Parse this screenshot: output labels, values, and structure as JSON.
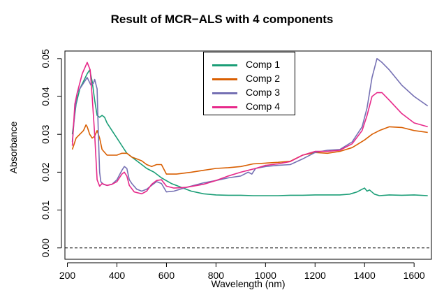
{
  "chart_data": {
    "type": "line",
    "title": "Result of MCR−ALS with 4 components",
    "xlabel": "Wavelength (nm)",
    "ylabel": "Absorbance",
    "xlim": [
      190,
      1670
    ],
    "ylim": [
      -0.003,
      0.052
    ],
    "x_ticks": [
      "200",
      "400",
      "600",
      "800",
      "1000",
      "1200",
      "1400",
      "1600"
    ],
    "y_ticks": [
      "0.00",
      "0.01",
      "0.02",
      "0.03",
      "0.04",
      "0.05"
    ],
    "grid": false,
    "legend_position": "top-center",
    "reference_line": {
      "y": 0,
      "style": "dashed"
    },
    "series": [
      {
        "name": "Comp 1",
        "color": "#1b9e77",
        "points": [
          [
            220,
            0.03
          ],
          [
            235,
            0.038
          ],
          [
            250,
            0.042
          ],
          [
            265,
            0.044
          ],
          [
            280,
            0.046
          ],
          [
            290,
            0.047
          ],
          [
            300,
            0.044
          ],
          [
            310,
            0.039
          ],
          [
            320,
            0.035
          ],
          [
            330,
            0.0345
          ],
          [
            340,
            0.035
          ],
          [
            350,
            0.0345
          ],
          [
            360,
            0.033
          ],
          [
            380,
            0.031
          ],
          [
            400,
            0.029
          ],
          [
            420,
            0.027
          ],
          [
            440,
            0.025
          ],
          [
            460,
            0.024
          ],
          [
            480,
            0.023
          ],
          [
            500,
            0.022
          ],
          [
            520,
            0.021
          ],
          [
            550,
            0.02
          ],
          [
            580,
            0.0185
          ],
          [
            620,
            0.017
          ],
          [
            660,
            0.016
          ],
          [
            700,
            0.015
          ],
          [
            750,
            0.0143
          ],
          [
            800,
            0.014
          ],
          [
            850,
            0.0139
          ],
          [
            900,
            0.0139
          ],
          [
            950,
            0.0138
          ],
          [
            1000,
            0.0138
          ],
          [
            1050,
            0.0138
          ],
          [
            1100,
            0.0139
          ],
          [
            1150,
            0.0139
          ],
          [
            1200,
            0.014
          ],
          [
            1250,
            0.014
          ],
          [
            1300,
            0.014
          ],
          [
            1340,
            0.0142
          ],
          [
            1370,
            0.0148
          ],
          [
            1390,
            0.0155
          ],
          [
            1400,
            0.0158
          ],
          [
            1410,
            0.015
          ],
          [
            1420,
            0.0153
          ],
          [
            1440,
            0.0142
          ],
          [
            1460,
            0.0138
          ],
          [
            1500,
            0.014
          ],
          [
            1550,
            0.0139
          ],
          [
            1600,
            0.014
          ],
          [
            1655,
            0.0138
          ]
        ]
      },
      {
        "name": "Comp 2",
        "color": "#d95f02",
        "points": [
          [
            220,
            0.026
          ],
          [
            235,
            0.029
          ],
          [
            250,
            0.03
          ],
          [
            265,
            0.031
          ],
          [
            275,
            0.0325
          ],
          [
            280,
            0.032
          ],
          [
            290,
            0.03
          ],
          [
            300,
            0.029
          ],
          [
            310,
            0.0295
          ],
          [
            320,
            0.031
          ],
          [
            330,
            0.029
          ],
          [
            340,
            0.026
          ],
          [
            360,
            0.0245
          ],
          [
            380,
            0.0245
          ],
          [
            400,
            0.0245
          ],
          [
            420,
            0.025
          ],
          [
            440,
            0.025
          ],
          [
            460,
            0.024
          ],
          [
            480,
            0.0235
          ],
          [
            500,
            0.023
          ],
          [
            520,
            0.022
          ],
          [
            540,
            0.0215
          ],
          [
            560,
            0.022
          ],
          [
            580,
            0.022
          ],
          [
            600,
            0.0195
          ],
          [
            640,
            0.0195
          ],
          [
            700,
            0.02
          ],
          [
            750,
            0.0205
          ],
          [
            800,
            0.021
          ],
          [
            850,
            0.0212
          ],
          [
            900,
            0.0215
          ],
          [
            950,
            0.0222
          ],
          [
            1000,
            0.0224
          ],
          [
            1050,
            0.0226
          ],
          [
            1100,
            0.0229
          ],
          [
            1150,
            0.0245
          ],
          [
            1200,
            0.0252
          ],
          [
            1250,
            0.025
          ],
          [
            1300,
            0.0255
          ],
          [
            1350,
            0.0265
          ],
          [
            1400,
            0.0285
          ],
          [
            1430,
            0.03
          ],
          [
            1460,
            0.031
          ],
          [
            1500,
            0.032
          ],
          [
            1550,
            0.0318
          ],
          [
            1600,
            0.031
          ],
          [
            1655,
            0.0305
          ]
        ]
      },
      {
        "name": "Comp 3",
        "color": "#7570b3",
        "points": [
          [
            220,
            0.028
          ],
          [
            230,
            0.036
          ],
          [
            240,
            0.041
          ],
          [
            260,
            0.043
          ],
          [
            280,
            0.045
          ],
          [
            295,
            0.043
          ],
          [
            305,
            0.0435
          ],
          [
            310,
            0.0445
          ],
          [
            320,
            0.042
          ],
          [
            325,
            0.03
          ],
          [
            330,
            0.02
          ],
          [
            335,
            0.0175
          ],
          [
            345,
            0.0168
          ],
          [
            360,
            0.0165
          ],
          [
            380,
            0.0168
          ],
          [
            400,
            0.018
          ],
          [
            420,
            0.0205
          ],
          [
            430,
            0.0215
          ],
          [
            440,
            0.021
          ],
          [
            450,
            0.018
          ],
          [
            460,
            0.017
          ],
          [
            480,
            0.0155
          ],
          [
            500,
            0.015
          ],
          [
            520,
            0.0155
          ],
          [
            540,
            0.0165
          ],
          [
            560,
            0.0175
          ],
          [
            580,
            0.017
          ],
          [
            600,
            0.0148
          ],
          [
            630,
            0.015
          ],
          [
            680,
            0.016
          ],
          [
            750,
            0.0172
          ],
          [
            800,
            0.0178
          ],
          [
            850,
            0.0185
          ],
          [
            900,
            0.019
          ],
          [
            930,
            0.02
          ],
          [
            945,
            0.0195
          ],
          [
            960,
            0.021
          ],
          [
            1000,
            0.0215
          ],
          [
            1050,
            0.0218
          ],
          [
            1100,
            0.022
          ],
          [
            1150,
            0.0235
          ],
          [
            1200,
            0.0252
          ],
          [
            1250,
            0.0258
          ],
          [
            1300,
            0.026
          ],
          [
            1350,
            0.028
          ],
          [
            1390,
            0.032
          ],
          [
            1410,
            0.037
          ],
          [
            1430,
            0.045
          ],
          [
            1450,
            0.05
          ],
          [
            1470,
            0.049
          ],
          [
            1500,
            0.047
          ],
          [
            1550,
            0.043
          ],
          [
            1600,
            0.04
          ],
          [
            1655,
            0.0375
          ]
        ]
      },
      {
        "name": "Comp 4",
        "color": "#e7298a",
        "points": [
          [
            220,
            0.027
          ],
          [
            230,
            0.038
          ],
          [
            240,
            0.041
          ],
          [
            260,
            0.046
          ],
          [
            280,
            0.049
          ],
          [
            292,
            0.047
          ],
          [
            300,
            0.04
          ],
          [
            310,
            0.03
          ],
          [
            320,
            0.018
          ],
          [
            330,
            0.0163
          ],
          [
            340,
            0.017
          ],
          [
            360,
            0.0165
          ],
          [
            380,
            0.0168
          ],
          [
            400,
            0.0175
          ],
          [
            420,
            0.0195
          ],
          [
            430,
            0.02
          ],
          [
            440,
            0.019
          ],
          [
            450,
            0.0165
          ],
          [
            470,
            0.0148
          ],
          [
            500,
            0.0143
          ],
          [
            520,
            0.015
          ],
          [
            540,
            0.0168
          ],
          [
            560,
            0.0178
          ],
          [
            580,
            0.018
          ],
          [
            600,
            0.0163
          ],
          [
            630,
            0.0158
          ],
          [
            680,
            0.016
          ],
          [
            750,
            0.0168
          ],
          [
            800,
            0.0178
          ],
          [
            850,
            0.019
          ],
          [
            900,
            0.02
          ],
          [
            930,
            0.0205
          ],
          [
            960,
            0.021
          ],
          [
            1000,
            0.0218
          ],
          [
            1050,
            0.0222
          ],
          [
            1100,
            0.0228
          ],
          [
            1150,
            0.0245
          ],
          [
            1200,
            0.0255
          ],
          [
            1250,
            0.0255
          ],
          [
            1300,
            0.0258
          ],
          [
            1350,
            0.0275
          ],
          [
            1390,
            0.031
          ],
          [
            1410,
            0.035
          ],
          [
            1430,
            0.04
          ],
          [
            1450,
            0.041
          ],
          [
            1470,
            0.041
          ],
          [
            1500,
            0.039
          ],
          [
            1550,
            0.0355
          ],
          [
            1600,
            0.033
          ],
          [
            1655,
            0.032
          ]
        ]
      }
    ]
  }
}
